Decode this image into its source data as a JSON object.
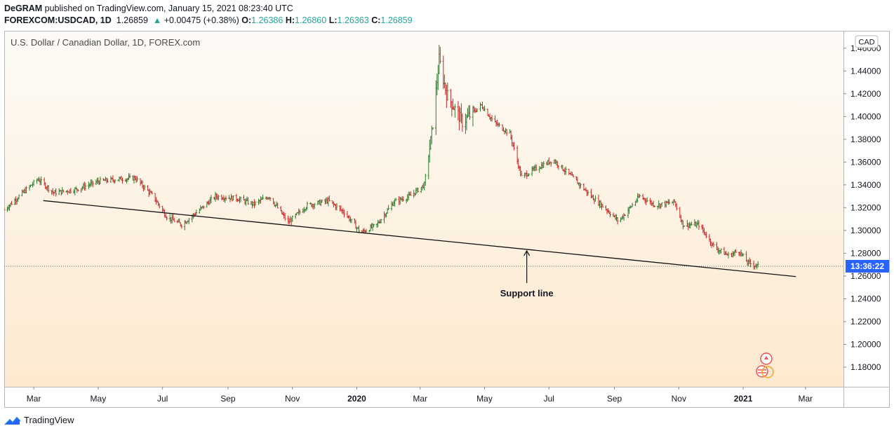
{
  "header": {
    "publisher": "DeGRAM",
    "published_text": "published on TradingView.com, January 15, 2021 08:23:40 UTC",
    "symbol": "FOREXCOM:USDCAD, 1D",
    "last": "1.26859",
    "change": "+0.00475 (+0.38%)",
    "change_arrow": "▲",
    "o_label": "O:",
    "o_value": "1.26386",
    "h_label": "H:",
    "h_value": "1.26860",
    "l_label": "L:",
    "l_value": "1.26363",
    "c_label": "C:",
    "c_value": "1.26859"
  },
  "footer": {
    "brand": "TradingView",
    "icon": "tradingview-cloud-icon"
  },
  "chart_data": {
    "type": "candlestick",
    "title": "U.S. Dollar / Canadian Dollar, 1D, FOREX.com",
    "currency_badge": "CAD",
    "ylim": [
      1.164,
      1.474
    ],
    "y_ticks": [
      "1.46000",
      "1.44000",
      "1.42000",
      "1.40000",
      "1.38000",
      "1.36000",
      "1.34000",
      "1.32000",
      "1.30000",
      "1.28000",
      "1.26000",
      "1.24000",
      "1.22000",
      "1.20000",
      "1.18000"
    ],
    "x_ticks": [
      "Mar",
      "May",
      "Jul",
      "Sep",
      "Nov",
      "2020",
      "Mar",
      "May",
      "Jul",
      "Sep",
      "Nov",
      "2021",
      "Mar"
    ],
    "x_ticks_bold": [
      "2020",
      "2021"
    ],
    "price_label": "13:36:22",
    "current_price": 1.26859,
    "colors": {
      "up": "#26a69a",
      "down": "#ef5350",
      "bar_up": "#2e7d32",
      "bar_down": "#c62828",
      "accent": "#2962ff"
    },
    "anchors": [
      [
        "2019-02-01",
        1.318
      ],
      [
        "2019-02-15",
        1.33
      ],
      [
        "2019-03-05",
        1.345
      ],
      [
        "2019-03-20",
        1.333
      ],
      [
        "2019-04-10",
        1.336
      ],
      [
        "2019-05-01",
        1.343
      ],
      [
        "2019-05-20",
        1.345
      ],
      [
        "2019-06-05",
        1.346
      ],
      [
        "2019-06-22",
        1.33
      ],
      [
        "2019-07-05",
        1.312
      ],
      [
        "2019-07-19",
        1.305
      ],
      [
        "2019-08-05",
        1.318
      ],
      [
        "2019-08-20",
        1.33
      ],
      [
        "2019-09-10",
        1.328
      ],
      [
        "2019-09-25",
        1.323
      ],
      [
        "2019-10-10",
        1.33
      ],
      [
        "2019-10-28",
        1.307
      ],
      [
        "2019-11-15",
        1.322
      ],
      [
        "2019-12-05",
        1.326
      ],
      [
        "2019-12-20",
        1.316
      ],
      [
        "2020-01-05",
        1.298
      ],
      [
        "2020-01-20",
        1.305
      ],
      [
        "2020-02-05",
        1.325
      ],
      [
        "2020-02-20",
        1.33
      ],
      [
        "2020-03-05",
        1.34
      ],
      [
        "2020-03-12",
        1.385
      ],
      [
        "2020-03-19",
        1.45
      ],
      [
        "2020-03-26",
        1.42
      ],
      [
        "2020-04-10",
        1.395
      ],
      [
        "2020-04-28",
        1.41
      ],
      [
        "2020-05-10",
        1.395
      ],
      [
        "2020-05-25",
        1.385
      ],
      [
        "2020-06-05",
        1.347
      ],
      [
        "2020-06-20",
        1.355
      ],
      [
        "2020-07-05",
        1.362
      ],
      [
        "2020-07-25",
        1.345
      ],
      [
        "2020-08-10",
        1.33
      ],
      [
        "2020-08-25",
        1.318
      ],
      [
        "2020-09-05",
        1.308
      ],
      [
        "2020-09-25",
        1.33
      ],
      [
        "2020-10-10",
        1.322
      ],
      [
        "2020-10-28",
        1.325
      ],
      [
        "2020-11-05",
        1.305
      ],
      [
        "2020-11-20",
        1.305
      ],
      [
        "2020-12-05",
        1.285
      ],
      [
        "2020-12-18",
        1.278
      ],
      [
        "2020-12-28",
        1.282
      ],
      [
        "2021-01-05",
        1.272
      ],
      [
        "2021-01-15",
        1.2686
      ]
    ],
    "support_line": {
      "label": "Support line",
      "from": [
        "2019-03-10",
        1.3262
      ],
      "to": [
        "2021-02-20",
        1.2595
      ]
    }
  }
}
